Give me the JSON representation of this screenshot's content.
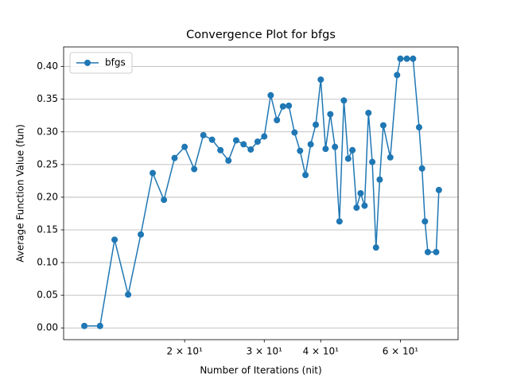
{
  "chart_data": {
    "type": "line",
    "title": "Convergence Plot for bfgs",
    "x_label": "Number of Iterations (nit)",
    "y_label": "Average Function Value (fun)",
    "x": [
      12,
      13,
      14,
      15,
      16,
      17,
      18,
      19,
      20,
      21,
      22,
      23,
      24,
      25,
      26,
      27,
      28,
      29,
      30,
      31,
      32,
      33,
      34,
      35,
      36,
      37,
      38,
      39,
      40,
      41,
      42,
      43,
      44,
      45,
      46,
      47,
      48,
      49,
      50,
      51,
      52,
      53,
      54,
      55,
      57,
      59,
      60,
      62,
      64,
      66,
      67,
      68,
      69,
      72,
      73
    ],
    "series": [
      {
        "name": "bfgs",
        "color": "#1f77b4",
        "values": [
          0.003,
          0.003,
          0.135,
          0.051,
          0.143,
          0.237,
          0.196,
          0.26,
          0.277,
          0.243,
          0.295,
          0.288,
          0.272,
          0.256,
          0.287,
          0.281,
          0.273,
          0.285,
          0.293,
          0.356,
          0.318,
          0.339,
          0.34,
          0.299,
          0.271,
          0.234,
          0.281,
          0.311,
          0.38,
          0.274,
          0.327,
          0.277,
          0.163,
          0.348,
          0.259,
          0.272,
          0.184,
          0.206,
          0.187,
          0.329,
          0.254,
          0.123,
          0.227,
          0.31,
          0.261,
          0.387,
          0.412,
          0.412,
          0.412,
          0.307,
          0.244,
          0.163,
          0.116,
          0.116,
          0.211
        ]
      }
    ],
    "xlim": [
      10.8,
      80.5
    ],
    "log_x": true,
    "xticks": [
      {
        "value": 20,
        "label": "2 × 10¹"
      },
      {
        "value": 30,
        "label": "3 × 10¹"
      },
      {
        "value": 40,
        "label": "4 × 10¹"
      },
      {
        "value": 60,
        "label": "6 × 10¹"
      }
    ],
    "ylim": [
      -0.018,
      0.43
    ],
    "yticks": [
      {
        "value": 0,
        "label": "0.00"
      },
      {
        "value": 0.05,
        "label": "0.05"
      },
      {
        "value": 0.1,
        "label": "0.10"
      },
      {
        "value": 0.15,
        "label": "0.15"
      },
      {
        "value": 0.2,
        "label": "0.20"
      },
      {
        "value": 0.25,
        "label": "0.25"
      },
      {
        "value": 0.3,
        "label": "0.30"
      },
      {
        "value": 0.35,
        "label": "0.35"
      },
      {
        "value": 0.4,
        "label": "0.40"
      }
    ],
    "grid": "y",
    "legend": "upper left"
  }
}
